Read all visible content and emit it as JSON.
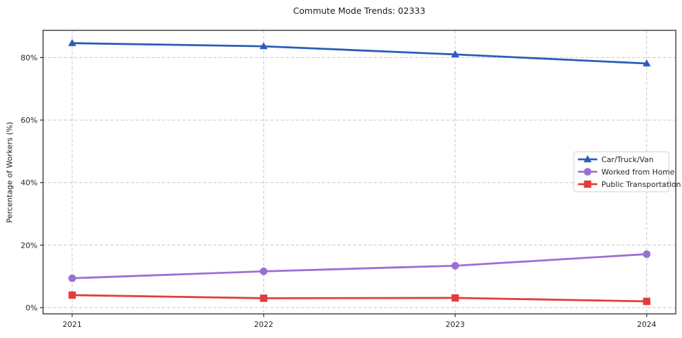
{
  "header": {
    "title": "Commute Mode Trends: 02333"
  },
  "chart_data": {
    "type": "line",
    "title": "Commute Mode Trends: 02333",
    "xlabel": "",
    "ylabel": "Percentage of Workers (%)",
    "categories": [
      "2021",
      "2022",
      "2023",
      "2024"
    ],
    "series": [
      {
        "name": "Car/Truck/Van",
        "marker": "triangle",
        "color": "#2b5db8",
        "values": [
          84.6,
          83.6,
          81.0,
          78.1
        ]
      },
      {
        "name": "Worked from Home",
        "marker": "circle",
        "color": "#9a6fd6",
        "values": [
          9.4,
          11.6,
          13.4,
          17.1
        ]
      },
      {
        "name": "Public Transportation",
        "marker": "square",
        "color": "#e23c3e",
        "values": [
          4.0,
          3.0,
          3.1,
          2.0
        ]
      }
    ],
    "y_ticks": [
      {
        "value": 0,
        "label": "0%"
      },
      {
        "value": 20,
        "label": "20%"
      },
      {
        "value": 40,
        "label": "40%"
      },
      {
        "value": 60,
        "label": "60%"
      },
      {
        "value": 80,
        "label": "80%"
      }
    ],
    "ylim": [
      -2,
      88.7
    ],
    "grid": true,
    "grid_style": "dashed",
    "legend_position": "center-right",
    "colors": {
      "grid": "#cccccc",
      "spine": "#2b2b2b",
      "text": "#262626",
      "background": "#ffffff",
      "legend_border": "#cfcfcf"
    }
  }
}
